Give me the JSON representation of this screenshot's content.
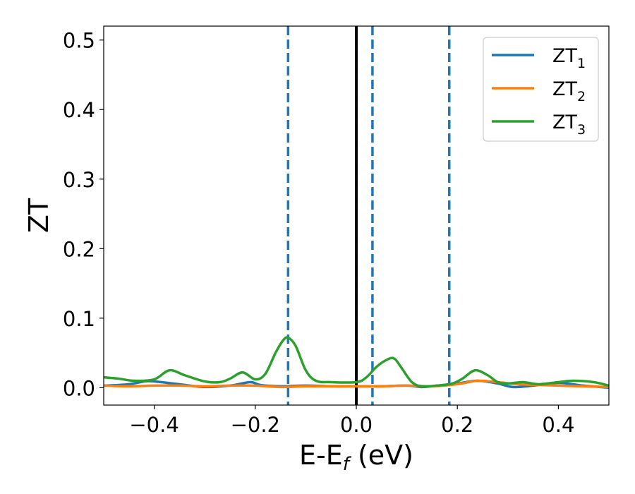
{
  "chart_data": {
    "type": "line",
    "xlabel": "E-E",
    "xlabel_sub": "f",
    "xlabel_unit": " (eV)",
    "ylabel": "ZT",
    "xlim": [
      -0.5,
      0.5
    ],
    "ylim": [
      -0.025,
      0.52
    ],
    "x_ticks": [
      -0.4,
      -0.2,
      0.0,
      0.2,
      0.4
    ],
    "x_tick_labels": [
      "−0.4",
      "−0.2",
      "0.0",
      "0.2",
      "0.4"
    ],
    "y_ticks": [
      0.0,
      0.1,
      0.2,
      0.3,
      0.4,
      0.5
    ],
    "y_tick_labels": [
      "0.0",
      "0.1",
      "0.2",
      "0.3",
      "0.4",
      "0.5"
    ],
    "grid": false,
    "legend_position": "top-right",
    "vertical_lines": [
      {
        "x": -0.135,
        "style": "dashed",
        "color": "#1f77b4"
      },
      {
        "x": 0.0,
        "style": "solid",
        "color": "#000000"
      },
      {
        "x": 0.032,
        "style": "dashed",
        "color": "#1f77b4"
      },
      {
        "x": 0.184,
        "style": "dashed",
        "color": "#1f77b4"
      }
    ],
    "series": [
      {
        "name": "ZT",
        "name_sub": "1",
        "color": "#1f77b4",
        "x": [
          -0.5,
          -0.45,
          -0.42,
          -0.4,
          -0.35,
          -0.3,
          -0.25,
          -0.21,
          -0.19,
          -0.15,
          -0.1,
          -0.05,
          0.0,
          0.05,
          0.1,
          0.13,
          0.16,
          0.2,
          0.24,
          0.28,
          0.31,
          0.35,
          0.4,
          0.45,
          0.5
        ],
        "y": [
          0.003,
          0.005,
          0.009,
          0.009,
          0.005,
          0.001,
          0.003,
          0.008,
          0.004,
          0.002,
          0.003,
          0.002,
          0.002,
          0.002,
          0.003,
          0.001,
          0.003,
          0.006,
          0.01,
          0.006,
          0.001,
          0.003,
          0.007,
          0.003,
          0.0
        ]
      },
      {
        "name": "ZT",
        "name_sub": "2",
        "color": "#ff7f0e",
        "x": [
          -0.5,
          -0.45,
          -0.4,
          -0.35,
          -0.3,
          -0.25,
          -0.2,
          -0.15,
          -0.1,
          -0.05,
          0.0,
          0.05,
          0.1,
          0.15,
          0.2,
          0.24,
          0.28,
          0.32,
          0.36,
          0.4,
          0.45,
          0.5
        ],
        "y": [
          0.003,
          0.002,
          0.003,
          0.003,
          0.002,
          0.003,
          0.003,
          0.001,
          0.002,
          0.002,
          0.002,
          0.002,
          0.003,
          0.002,
          0.005,
          0.01,
          0.008,
          0.005,
          0.004,
          0.003,
          0.002,
          0.001
        ]
      },
      {
        "name": "ZT",
        "name_sub": "3",
        "color": "#2ca02c",
        "x": [
          -0.5,
          -0.47,
          -0.44,
          -0.4,
          -0.37,
          -0.34,
          -0.3,
          -0.27,
          -0.25,
          -0.225,
          -0.2,
          -0.18,
          -0.16,
          -0.145,
          -0.135,
          -0.12,
          -0.1,
          -0.08,
          -0.05,
          0.0,
          0.02,
          0.04,
          0.06,
          0.075,
          0.09,
          0.11,
          0.13,
          0.16,
          0.19,
          0.21,
          0.235,
          0.26,
          0.28,
          0.3,
          0.33,
          0.36,
          0.4,
          0.43,
          0.47,
          0.5
        ],
        "y": [
          0.015,
          0.013,
          0.01,
          0.012,
          0.025,
          0.018,
          0.009,
          0.008,
          0.013,
          0.022,
          0.012,
          0.02,
          0.05,
          0.068,
          0.072,
          0.06,
          0.025,
          0.01,
          0.008,
          0.008,
          0.015,
          0.03,
          0.04,
          0.042,
          0.028,
          0.008,
          0.002,
          0.003,
          0.006,
          0.013,
          0.025,
          0.018,
          0.008,
          0.006,
          0.008,
          0.005,
          0.008,
          0.01,
          0.008,
          0.003
        ]
      }
    ]
  }
}
